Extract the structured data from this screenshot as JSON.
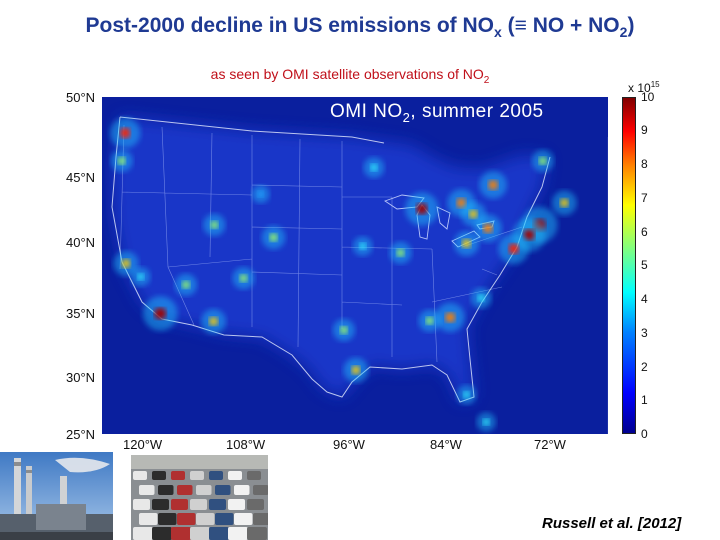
{
  "title": {
    "prefix": "Post-2000 decline in US emissions of NO",
    "sub_x": "x",
    "middle": " (≡ NO + NO",
    "sub_2": "2",
    "suffix": ")"
  },
  "subtitle": {
    "text": "as seen by OMI satellite observations of NO",
    "sub": "2"
  },
  "map": {
    "title_prefix": "OMI NO",
    "title_sub": "2",
    "title_suffix": ", summer 2005",
    "lat_labels": [
      "50°N",
      "45°N",
      "40°N",
      "35°N",
      "30°N",
      "25°N"
    ],
    "lon_labels": [
      "120°W",
      "108°W",
      "96°W",
      "84°W",
      "72°W"
    ],
    "hotspots": [
      {
        "name": "seattle",
        "lon": -122.3,
        "lat": 47.6,
        "level": 8
      },
      {
        "name": "portland",
        "lon": -122.7,
        "lat": 45.5,
        "level": 5
      },
      {
        "name": "san-francisco",
        "lon": -122.2,
        "lat": 37.8,
        "level": 6
      },
      {
        "name": "central-valley",
        "lon": -120.5,
        "lat": 36.8,
        "level": 4
      },
      {
        "name": "los-angeles",
        "lon": -118.2,
        "lat": 34.05,
        "level": 9.5
      },
      {
        "name": "las-vegas",
        "lon": -115.2,
        "lat": 36.2,
        "level": 5
      },
      {
        "name": "phoenix",
        "lon": -112.0,
        "lat": 33.45,
        "level": 6
      },
      {
        "name": "salt-lake-city",
        "lon": -111.9,
        "lat": 40.7,
        "level": 5
      },
      {
        "name": "denver",
        "lon": -105.0,
        "lat": 39.75,
        "level": 5.5
      },
      {
        "name": "four-corners",
        "lon": -108.5,
        "lat": 36.7,
        "level": 5
      },
      {
        "name": "wyoming-coal",
        "lon": -106.5,
        "lat": 43.0,
        "level": 3.5
      },
      {
        "name": "dallas",
        "lon": -96.8,
        "lat": 32.8,
        "level": 5
      },
      {
        "name": "houston",
        "lon": -95.4,
        "lat": 29.8,
        "level": 6
      },
      {
        "name": "kansas-city",
        "lon": -94.6,
        "lat": 39.1,
        "level": 4
      },
      {
        "name": "minneapolis",
        "lon": -93.3,
        "lat": 45.0,
        "level": 4.5
      },
      {
        "name": "chicago",
        "lon": -87.7,
        "lat": 41.9,
        "level": 9
      },
      {
        "name": "st-louis",
        "lon": -90.2,
        "lat": 38.6,
        "level": 5
      },
      {
        "name": "detroit",
        "lon": -83.1,
        "lat": 42.35,
        "level": 7
      },
      {
        "name": "cleveland",
        "lon": -81.7,
        "lat": 41.5,
        "level": 6
      },
      {
        "name": "pittsburgh",
        "lon": -80.0,
        "lat": 40.45,
        "level": 7
      },
      {
        "name": "ohio-valley",
        "lon": -82.5,
        "lat": 39.3,
        "level": 6
      },
      {
        "name": "atlanta",
        "lon": -84.4,
        "lat": 33.75,
        "level": 7.5
      },
      {
        "name": "birmingham",
        "lon": -86.8,
        "lat": 33.5,
        "level": 5
      },
      {
        "name": "charlotte",
        "lon": -80.8,
        "lat": 35.2,
        "level": 4.5
      },
      {
        "name": "new-york",
        "lon": -74.0,
        "lat": 40.7,
        "level": 10
      },
      {
        "name": "philadelphia",
        "lon": -75.2,
        "lat": 39.95,
        "level": 9
      },
      {
        "name": "washington",
        "lon": -77.0,
        "lat": 38.9,
        "level": 8
      },
      {
        "name": "boston",
        "lon": -71.1,
        "lat": 42.35,
        "level": 6
      },
      {
        "name": "toronto",
        "lon": -79.4,
        "lat": 43.7,
        "level": 7
      },
      {
        "name": "montreal",
        "lon": -73.6,
        "lat": 45.5,
        "level": 5
      },
      {
        "name": "tampa",
        "lon": -82.5,
        "lat": 27.95,
        "level": 4
      },
      {
        "name": "miami",
        "lon": -80.2,
        "lat": 25.9,
        "level": 4
      }
    ]
  },
  "colorbar": {
    "scale_base": "x 10",
    "scale_exp": "15",
    "min": 0,
    "max": 10,
    "tick_labels": [
      "10",
      "9",
      "8",
      "7",
      "6",
      "5",
      "4",
      "3",
      "2",
      "1",
      "0"
    ]
  },
  "citation": "Russell et al. [2012]",
  "photos": [
    {
      "name": "power-plant-photo",
      "depicts": "power-plant-smokestacks"
    },
    {
      "name": "traffic-jam-photo",
      "depicts": "traffic-jam"
    }
  ],
  "colors": {
    "title": "#1f3a93",
    "subtitle": "#c0101a",
    "map_background": "#0a1f9e"
  }
}
